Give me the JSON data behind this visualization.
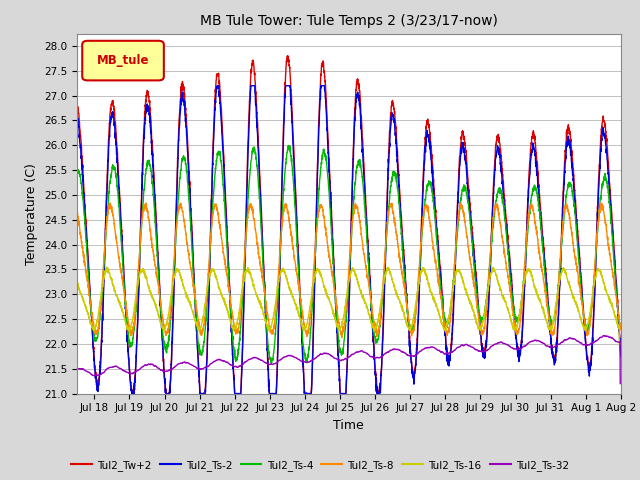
{
  "title": "MB Tule Tower: Tule Temps 2 (3/23/17-now)",
  "xlabel": "Time",
  "ylabel": "Temperature (C)",
  "ylim": [
    21.0,
    28.25
  ],
  "yticks": [
    21.0,
    21.5,
    22.0,
    22.5,
    23.0,
    23.5,
    24.0,
    24.5,
    25.0,
    25.5,
    26.0,
    26.5,
    27.0,
    27.5,
    28.0
  ],
  "background_color": "#d8d8d8",
  "plot_bg_color": "#ffffff",
  "grid_color": "#c0c0c0",
  "series": {
    "Tul2_Tw+2": {
      "color": "#dd0000",
      "lw": 1.0
    },
    "Tul2_Ts-2": {
      "color": "#0000dd",
      "lw": 1.0
    },
    "Tul2_Ts-4": {
      "color": "#00bb00",
      "lw": 1.0
    },
    "Tul2_Ts-8": {
      "color": "#ff8800",
      "lw": 1.0
    },
    "Tul2_Ts-16": {
      "color": "#cccc00",
      "lw": 1.0
    },
    "Tul2_Ts-32": {
      "color": "#9900bb",
      "lw": 1.0
    }
  },
  "legend_label": "MB_tule",
  "legend_label_color": "#cc0000",
  "legend_box_color": "#ffff99",
  "x_tick_labels": [
    "Jul 18",
    "Jul 19",
    "Jul 20",
    "Jul 21",
    "Jul 22",
    "Jul 23",
    "Jul 24",
    "Jul 25",
    "Jul 26",
    "Jul 27",
    "Jul 28",
    "Jul 29",
    "Jul 30",
    "Jul 31",
    "Aug 1",
    "Aug 2"
  ]
}
